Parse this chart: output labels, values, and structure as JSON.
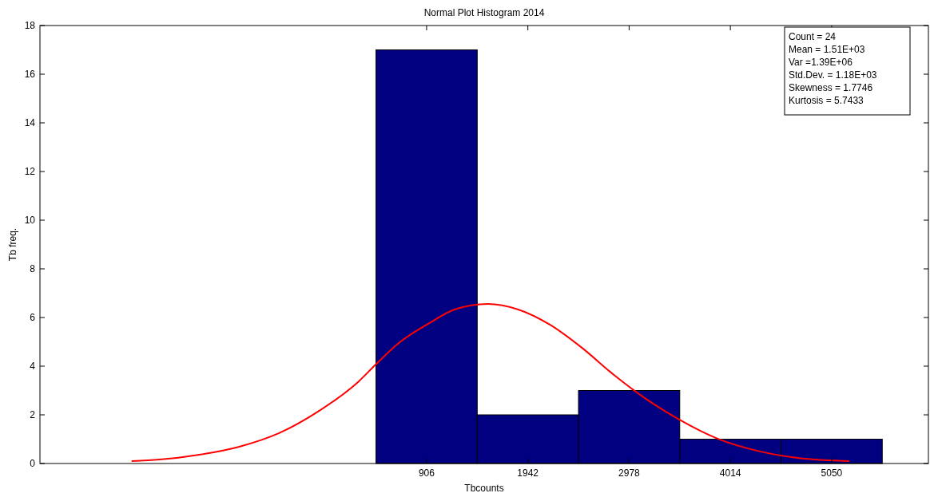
{
  "chart_data": {
    "type": "histogram",
    "title": "Normal Plot Histogram 2014",
    "xlabel": "Tbcounts",
    "ylabel": "Tb freq.",
    "bins": [
      388,
      1424,
      2460,
      3496,
      4532,
      5568
    ],
    "series": [
      {
        "color": "#000080",
        "values": [
          17,
          2,
          3,
          1,
          1
        ]
      },
      {
        "type": "line",
        "color": "#ff0000",
        "x": [
          -2112,
          -1827,
          -1419,
          -1011,
          -603,
          -195,
          213,
          376,
          621,
          947,
          1191,
          1534,
          1844,
          2170,
          2497,
          2823,
          3149,
          3476,
          3883,
          4291,
          4699,
          5229
        ],
        "values": [
          0.1,
          0.16,
          0.36,
          0.69,
          1.25,
          2.16,
          3.38,
          4.03,
          4.95,
          5.8,
          6.33,
          6.56,
          6.33,
          5.7,
          4.75,
          3.64,
          2.66,
          1.84,
          1.02,
          0.52,
          0.23,
          0.1
        ]
      }
    ],
    "xlim": [
      -3050,
      6040
    ],
    "xticks": [
      906,
      1942,
      2978,
      4014,
      5050
    ],
    "ylim": [
      0,
      18
    ],
    "yticks": [
      0,
      2,
      4,
      6,
      8,
      10,
      12,
      14,
      16,
      18
    ],
    "annotations": [
      "Count = 24",
      "Mean = 1.51E+03",
      "Var =1.39E+06",
      "Std.Dev. = 1.18E+03",
      "Skewness = 1.7746",
      "Kurtosis = 5.7433"
    ]
  }
}
